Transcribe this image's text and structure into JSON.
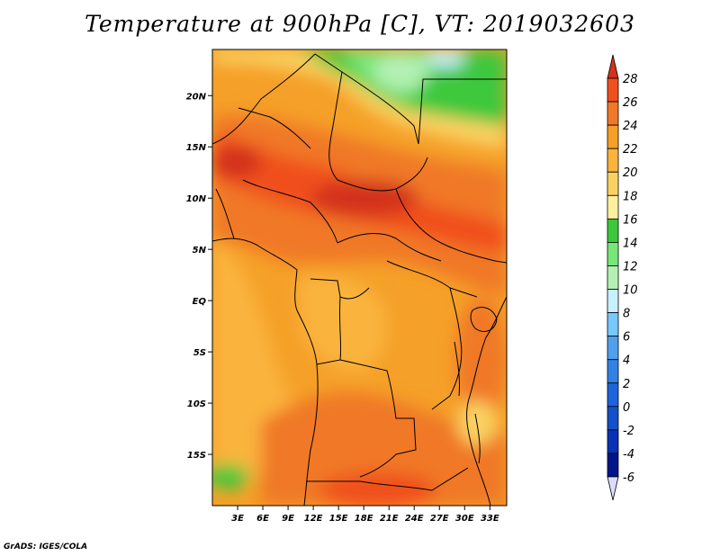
{
  "title": "Temperature at 900hPa [C], VT: 2019032603",
  "credit": "GrADS: IGES/COLA",
  "chart_data": {
    "type": "heatmap",
    "title": "Temperature at 900hPa [C], VT: 2019032603",
    "variable": "Temperature at 900hPa",
    "units": "C",
    "valid_time": "2019032603",
    "x_axis": {
      "range": [
        0,
        35
      ],
      "ticks": [
        3,
        6,
        9,
        12,
        15,
        18,
        21,
        24,
        27,
        30,
        33
      ],
      "tick_labels": [
        "3E",
        "6E",
        "9E",
        "12E",
        "15E",
        "18E",
        "21E",
        "24E",
        "27E",
        "30E",
        "33E"
      ]
    },
    "y_axis": {
      "range": [
        -20,
        24.5
      ],
      "ticks": [
        20,
        15,
        10,
        5,
        0,
        -5,
        -10,
        -15
      ],
      "tick_labels": [
        "20N",
        "15N",
        "10N",
        "5N",
        "EQ",
        "5S",
        "10S",
        "15S"
      ]
    },
    "colorbar": {
      "levels": [
        28,
        26,
        24,
        22,
        20,
        18,
        16,
        14,
        12,
        10,
        8,
        6,
        4,
        2,
        0,
        -2,
        -4,
        -6
      ],
      "labels": [
        "28",
        "26",
        "24",
        "22",
        "20",
        "18",
        "16",
        "14",
        "12",
        "10",
        "8",
        "6",
        "4",
        "2",
        "0",
        "-2",
        "-4",
        "-6"
      ],
      "colors": [
        "#d2321e",
        "#f0501e",
        "#f07828",
        "#f5a028",
        "#fab43c",
        "#fad264",
        "#fff0a0",
        "#3cc83c",
        "#78e678",
        "#b4f0b4",
        "#c8f0ff",
        "#78c8ff",
        "#50a0f0",
        "#3282e6",
        "#1e64dc",
        "#1450c8",
        "#0a32b4",
        "#00148c"
      ],
      "over_color": "#d2321e",
      "under_color": "#dcdcff"
    }
  }
}
